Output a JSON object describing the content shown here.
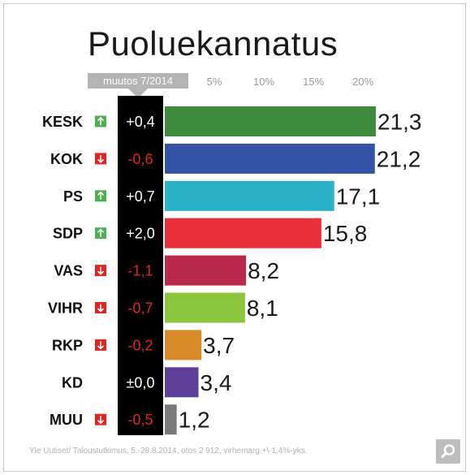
{
  "chart_data": {
    "type": "bar",
    "title": "Puoluekannatus",
    "change_header": "muutos 7/2014",
    "tick_labels": [
      "5%",
      "10%",
      "15%",
      "20%"
    ],
    "xlim": [
      0,
      21.3
    ],
    "categories": [
      "KESK",
      "KOK",
      "PS",
      "SDP",
      "VAS",
      "VIHR",
      "RKP",
      "KD",
      "MUU"
    ],
    "values": [
      21.3,
      21.2,
      17.1,
      15.8,
      8.2,
      8.1,
      3.7,
      3.4,
      1.2
    ],
    "value_labels": [
      "21,3",
      "21,2",
      "17,1",
      "15,8",
      "8,2",
      "8,1",
      "3,7",
      "3,4",
      "1,2"
    ],
    "changes": [
      "+0,4",
      "-0,6",
      "+0,7",
      "+2,0",
      "-1,1",
      "-0,7",
      "-0,2",
      "±0,0",
      "-0,5"
    ],
    "change_direction": [
      "up",
      "down",
      "up",
      "up",
      "down",
      "down",
      "down",
      "none",
      "down"
    ],
    "bar_colors": [
      "#3d8b3d",
      "#3452a3",
      "#2ab2c9",
      "#e8303a",
      "#b8294b",
      "#8cc63e",
      "#d8892a",
      "#5b3f98",
      "#7a7a7a"
    ],
    "colors": {
      "up": "#4caf50",
      "down": "#e32222",
      "change_positive_text": "#ffffff",
      "change_negative_text": "#e32222"
    },
    "source": "Yle Uutiset/ Taloustutkimus, 5.-28.8.2014, otos 2 912, virhemarg.+\\-1,4%-yks."
  }
}
